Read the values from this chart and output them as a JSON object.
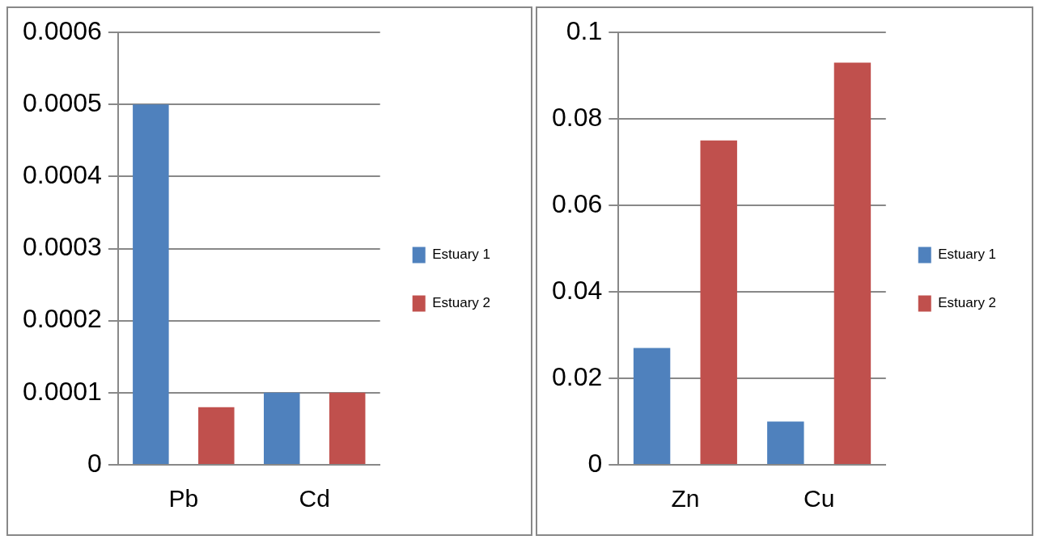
{
  "chart_data": [
    {
      "type": "bar",
      "categories": [
        "Pb",
        "Cd"
      ],
      "series": [
        {
          "name": "Estuary 1",
          "color": "#4f81bd",
          "values": [
            0.0005,
            0.0001
          ]
        },
        {
          "name": "Estuary 2",
          "color": "#c0504d",
          "values": [
            8e-05,
            0.0001
          ]
        }
      ],
      "ylim": [
        0,
        0.0006
      ],
      "yticks": [
        0,
        0.0001,
        0.0002,
        0.0003,
        0.0004,
        0.0005,
        0.0006
      ],
      "grid": "y",
      "legend": "right"
    },
    {
      "type": "bar",
      "categories": [
        "Zn",
        "Cu"
      ],
      "series": [
        {
          "name": "Estuary 1",
          "color": "#4f81bd",
          "values": [
            0.027,
            0.01
          ]
        },
        {
          "name": "Estuary 2",
          "color": "#c0504d",
          "values": [
            0.075,
            0.093
          ]
        }
      ],
      "ylim": [
        0,
        0.1
      ],
      "yticks": [
        0,
        0.02,
        0.04,
        0.06,
        0.08,
        0.1
      ],
      "grid": "y",
      "legend": "right"
    }
  ]
}
